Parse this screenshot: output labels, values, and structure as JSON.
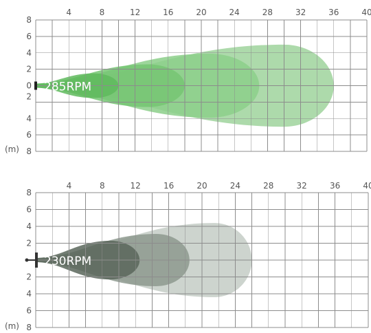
{
  "chart_data": [
    {
      "type": "area",
      "title": "285RPM",
      "unit": "(m)",
      "x_ticks": [
        4,
        8,
        12,
        16,
        20,
        24,
        28,
        32,
        36,
        40
      ],
      "y_ticks_top": [
        8,
        6,
        4,
        2,
        0
      ],
      "y_ticks_bottom": [
        2,
        4,
        6,
        8
      ],
      "xlim": [
        0,
        40
      ],
      "ylim": [
        -8,
        8
      ],
      "grid": true,
      "title_color": "#ffffff",
      "series": [
        {
          "reach": 36.0,
          "max_width": 5.0,
          "peak_x": 30.0,
          "color": "#9fd49c"
        },
        {
          "reach": 27.0,
          "max_width": 3.9,
          "peak_x": 21.0,
          "color": "#8ccf89"
        },
        {
          "reach": 18.0,
          "max_width": 2.6,
          "peak_x": 13.5,
          "color": "#76c573"
        },
        {
          "reach": 10.0,
          "max_width": 1.5,
          "peak_x": 7.0,
          "color": "#5fba5d"
        }
      ]
    },
    {
      "type": "area",
      "title": "230RPM",
      "unit": "(m)",
      "x_ticks": [
        4,
        8,
        12,
        16,
        20,
        24,
        28,
        32,
        36,
        40
      ],
      "y_ticks_top": [
        8,
        6,
        4,
        2
      ],
      "y_ticks_bottom": [
        2,
        4,
        6,
        8
      ],
      "xlim": [
        0,
        40
      ],
      "ylim": [
        -8,
        8
      ],
      "grid": true,
      "title_color": "#ffffff",
      "series": [
        {
          "reach": 26.0,
          "max_width": 4.4,
          "peak_x": 21.5,
          "color": "#c4cdc5"
        },
        {
          "reach": 18.5,
          "max_width": 3.1,
          "peak_x": 14.5,
          "color": "#8d998e"
        },
        {
          "reach": 12.5,
          "max_width": 2.3,
          "peak_x": 9.0,
          "color": "#59665b"
        }
      ]
    }
  ]
}
